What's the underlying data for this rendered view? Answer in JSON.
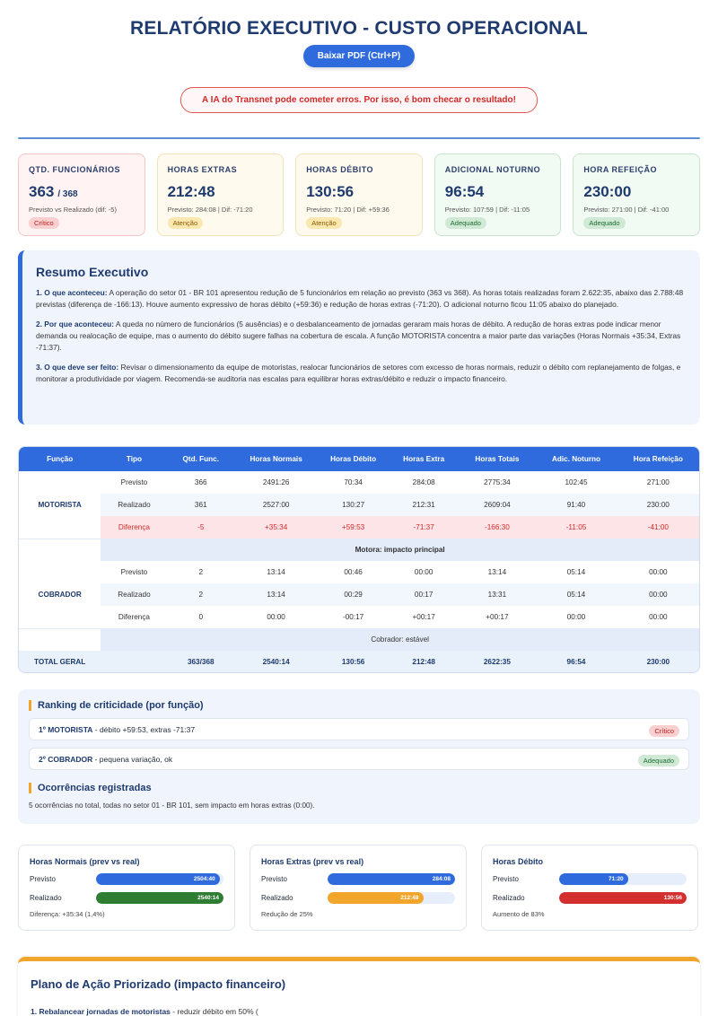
{
  "header": {
    "title": "RELATÓRIO EXECUTIVO - CUSTO OPERACIONAL",
    "pdf_button": "Baixar PDF (Ctrl+P)",
    "warning": "A IA do Transnet pode cometer erros. Por isso, é bom checar o resultado!"
  },
  "kpis": [
    {
      "label": "QTD. FUNCIONÁRIOS",
      "value": "363",
      "value_suffix": "/ 368",
      "sub": "Previsto vs Realizado (dif: -5)",
      "badge": "Crítico"
    },
    {
      "label": "HORAS EXTRAS",
      "value": "212:48",
      "sub": "Previsto: 284:08 | Dif: -71:20",
      "badge": "Atenção"
    },
    {
      "label": "HORAS DÉBITO",
      "value": "130:56",
      "sub": "Previsto: 71:20 | Dif: +59:36",
      "badge": "Atenção"
    },
    {
      "label": "ADICIONAL NOTURNO",
      "value": "96:54",
      "sub": "Previsto: 107:59 | Dif: -11:05",
      "badge": "Adequado"
    },
    {
      "label": "HORA REFEIÇÃO",
      "value": "230:00",
      "sub": "Previsto: 271:00 | Dif: -41:00",
      "badge": "Adequado"
    }
  ],
  "summary": {
    "title": "Resumo Executivo",
    "p1_label": "1. O que aconteceu:",
    "p1_text": " A operação do setor 01 - BR 101 apresentou redução de 5 funcionários em relação ao previsto (363 vs 368). As horas totais realizadas foram 2.622:35, abaixo das 2.788:48 previstas (diferença de -166:13). Houve aumento expressivo de horas débito (+59:36) e redução de horas extras (-71:20). O adicional noturno ficou 11:05 abaixo do planejado.",
    "p2_label": "2. Por que aconteceu:",
    "p2_text": " A queda no número de funcionários (5 ausências) e o desbalanceamento de jornadas geraram mais horas de débito. A redução de horas extras pode indicar menor demanda ou realocação de equipe, mas o aumento do débito sugere falhas na cobertura de escala. A função MOTORISTA concentra a maior parte das variações (Horas Normais +35:34, Extras -71:37).",
    "p3_label": "3. O que deve ser feito:",
    "p3_text": " Revisar o dimensionamento da equipe de motoristas, realocar funcionários de setores com excesso de horas normais, reduzir o débito com replanejamento de folgas, e monitorar a produtividade por viagem. Recomenda-se auditoria nas escalas para equilibrar horas extras/débito e reduzir o impacto financeiro."
  },
  "table": {
    "headers": [
      "Função",
      "Tipo",
      "Qtd. Func.",
      "Horas Normais",
      "Horas Débito",
      "Horas Extra",
      "Horas Totais",
      "Adic. Noturno",
      "Hora Refeição"
    ],
    "groups": [
      {
        "name": "MOTORISTA",
        "rows": [
          [
            "Previsto",
            "366",
            "2491:26",
            "70:34",
            "284:08",
            "2775:34",
            "102:45",
            "271:00"
          ],
          [
            "Realizado",
            "361",
            "2527:00",
            "130:27",
            "212:31",
            "2609:04",
            "91:40",
            "230:00"
          ],
          [
            "Diferença",
            "-5",
            "+35:34",
            "+59:53",
            "-71:37",
            "-166:30",
            "-11:05",
            "-41:00"
          ]
        ],
        "note": "Motora: impacto principal"
      },
      {
        "name": "COBRADOR",
        "rows": [
          [
            "Previsto",
            "2",
            "13:14",
            "00:46",
            "00:00",
            "13:14",
            "05:14",
            "00:00"
          ],
          [
            "Realizado",
            "2",
            "13:14",
            "00:29",
            "00:17",
            "13:31",
            "05:14",
            "00:00"
          ],
          [
            "Diferença",
            "0",
            "00:00",
            "-00:17",
            "+00:17",
            "+00:17",
            "00:00",
            "00:00"
          ]
        ],
        "note": "Cobrador: estável"
      }
    ],
    "total": [
      "TOTAL GERAL",
      "",
      "363/368",
      "2540:14",
      "130:56",
      "212:48",
      "2622:35",
      "96:54",
      "230:00"
    ]
  },
  "ranking": {
    "title": "Ranking de criticidade (por função)",
    "items": [
      {
        "name": "1º MOTORISTA",
        "desc": " - débito +59:53, extras -71:37",
        "badge": "Crítico"
      },
      {
        "name": "2º COBRADOR",
        "desc": " - pequena variação, ok",
        "badge": "Adequado"
      }
    ],
    "occ_title": "Ocorrências registradas",
    "occ_text": "5 ocorrências no total, todas no setor 01 - BR 101, sem impacto em horas extras (0:00)."
  },
  "bar_cards": [
    {
      "title": "Horas Normais (prev vs real)",
      "prev_label": "Previsto",
      "prev_value": "2504:40",
      "prev_pct": 97,
      "real_label": "Realizado",
      "real_value": "2540:14",
      "real_pct": 100,
      "note": "Diferença: +35:34 (1,4%)",
      "prev_color": "#2f6bdc",
      "real_color": "#2e7d32"
    },
    {
      "title": "Horas Extras (prev vs real)",
      "prev_label": "Previsto",
      "prev_value": "284:08",
      "prev_pct": 100,
      "real_label": "Realizado",
      "real_value": "212:48",
      "real_pct": 75,
      "note": "Redução de 25%",
      "prev_color": "#2f6bdc",
      "real_color": "#f2a52b"
    },
    {
      "title": "Horas Débito",
      "prev_label": "Previsto",
      "prev_value": "71:20",
      "prev_pct": 54,
      "real_label": "Realizado",
      "real_value": "130:56",
      "real_pct": 100,
      "note": "Aumento de 83%",
      "prev_color": "#2f6bdc",
      "real_color": "#d32f2f"
    }
  ],
  "plan": {
    "title": "Plano de Ação Priorizado (impacto financeiro)",
    "item1_label": "1. Rebalancear jornadas de motoristas",
    "item1_text": " - reduzir débito em 50% ("
  }
}
